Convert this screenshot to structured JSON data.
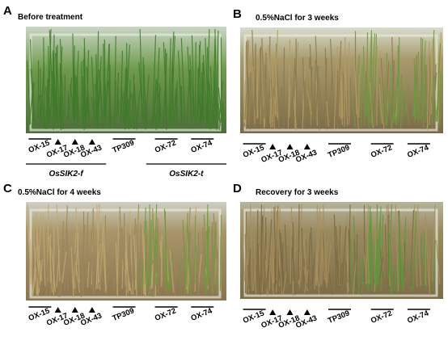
{
  "panels": [
    {
      "letter": "A",
      "title": "Before treatment",
      "labels": [
        "OX-15",
        "OX-17",
        "OX-18",
        "OX-43",
        "TP309",
        "OX-72",
        "OX-74"
      ],
      "groups": [
        "OsSIK2-f",
        "OsSIK2-t"
      ]
    },
    {
      "letter": "B",
      "title": "0.5%NaCl  for 3 weeks",
      "labels": [
        "OX-15",
        "OX-17",
        "OX-18",
        "OX-43",
        "TP309",
        "OX-72",
        "OX-74"
      ]
    },
    {
      "letter": "C",
      "title": "0.5%NaCl  for 4 weeks",
      "labels": [
        "OX-15",
        "OX-17",
        "OX-18",
        "OX-43",
        "TP309",
        "OX-72",
        "OX-74"
      ]
    },
    {
      "letter": "D",
      "title": "Recovery for 3 weeks",
      "labels": [
        "OX-15",
        "OX-17",
        "OX-18",
        "OX-43",
        "TP309",
        "OX-72",
        "OX-74"
      ]
    }
  ]
}
